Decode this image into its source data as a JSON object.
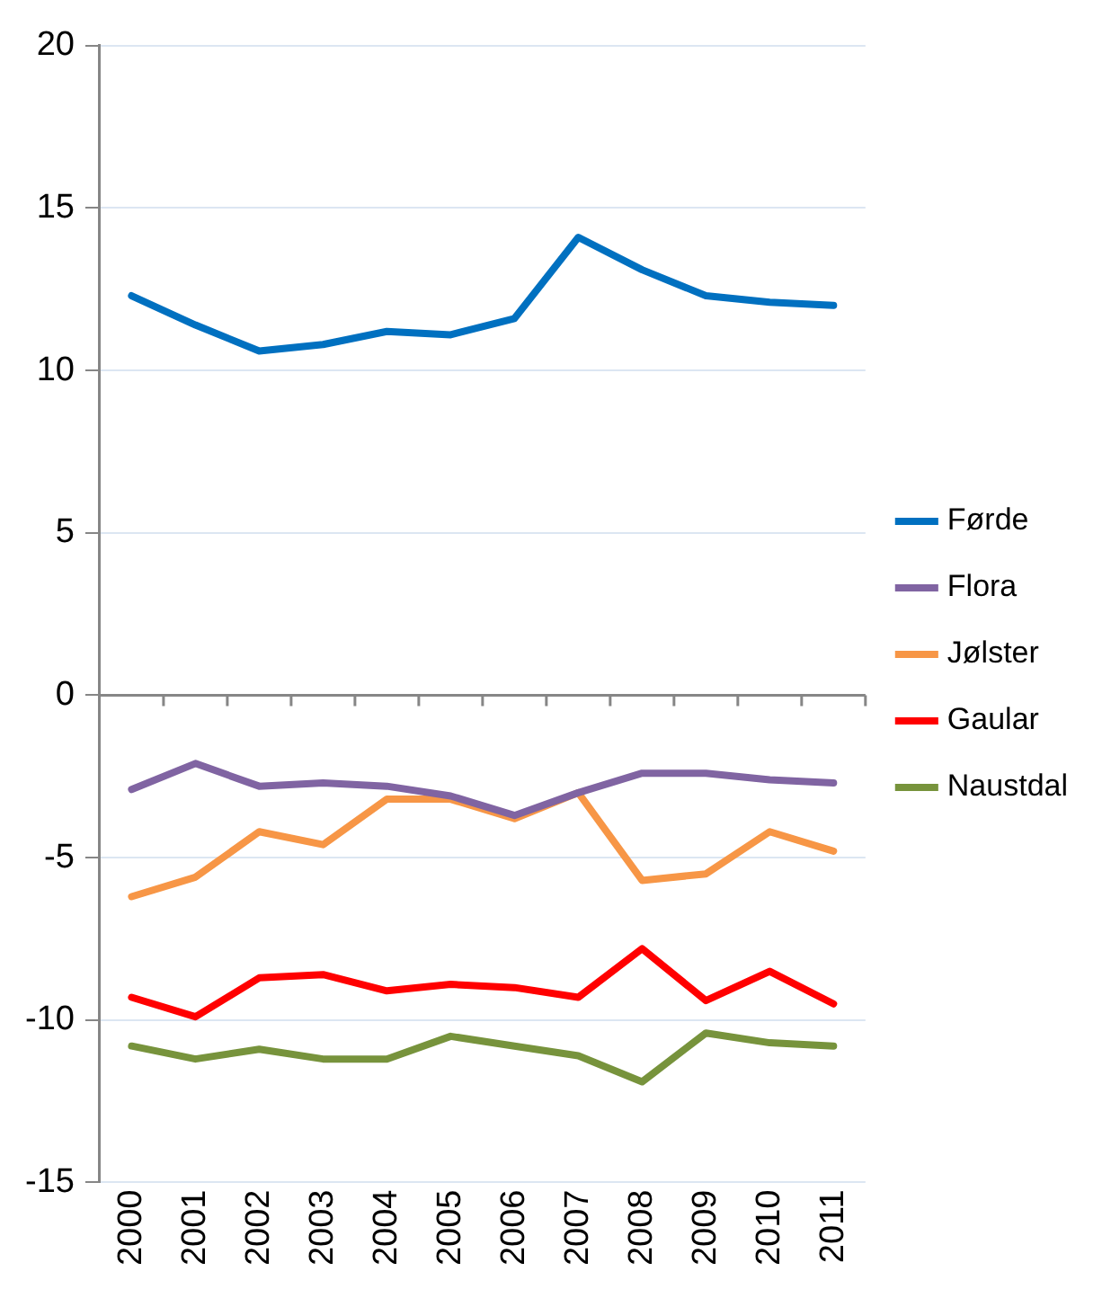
{
  "chart_data": {
    "type": "line",
    "categories": [
      "2000",
      "2001",
      "2002",
      "2003",
      "2004",
      "2005",
      "2006",
      "2007",
      "2008",
      "2009",
      "2010",
      "2011"
    ],
    "series": [
      {
        "name": "Førde",
        "color": "#0070c0",
        "values": [
          12.3,
          11.4,
          10.6,
          10.8,
          11.2,
          11.1,
          11.6,
          14.1,
          13.1,
          12.3,
          12.1,
          12.0
        ]
      },
      {
        "name": "Flora",
        "color": "#8064a2",
        "values": [
          -2.9,
          -2.1,
          -2.8,
          -2.7,
          -2.8,
          -3.1,
          -3.7,
          -3.0,
          -2.4,
          -2.4,
          -2.6,
          -2.7
        ]
      },
      {
        "name": "Jølster",
        "color": "#f79646",
        "values": [
          -6.2,
          -5.6,
          -4.2,
          -4.6,
          -3.2,
          -3.2,
          -3.8,
          -3.0,
          -5.7,
          -5.5,
          -4.2,
          -4.8
        ]
      },
      {
        "name": "Gaular",
        "color": "#ff0000",
        "values": [
          -9.3,
          -9.9,
          -8.7,
          -8.6,
          -9.1,
          -8.9,
          -9.0,
          -9.3,
          -7.8,
          -9.4,
          -8.5,
          -9.5
        ]
      },
      {
        "name": "Naustdal",
        "color": "#77933c",
        "values": [
          -10.8,
          -11.2,
          -10.9,
          -11.2,
          -11.2,
          -10.5,
          -10.8,
          -11.1,
          -11.9,
          -10.4,
          -10.7,
          -10.8
        ]
      }
    ],
    "ylim": [
      -15,
      20
    ],
    "yticks": [
      -15,
      -10,
      -5,
      0,
      5,
      10,
      15,
      20
    ],
    "grid": "y",
    "legend": "right",
    "marker": "none",
    "line_style": "solid"
  }
}
